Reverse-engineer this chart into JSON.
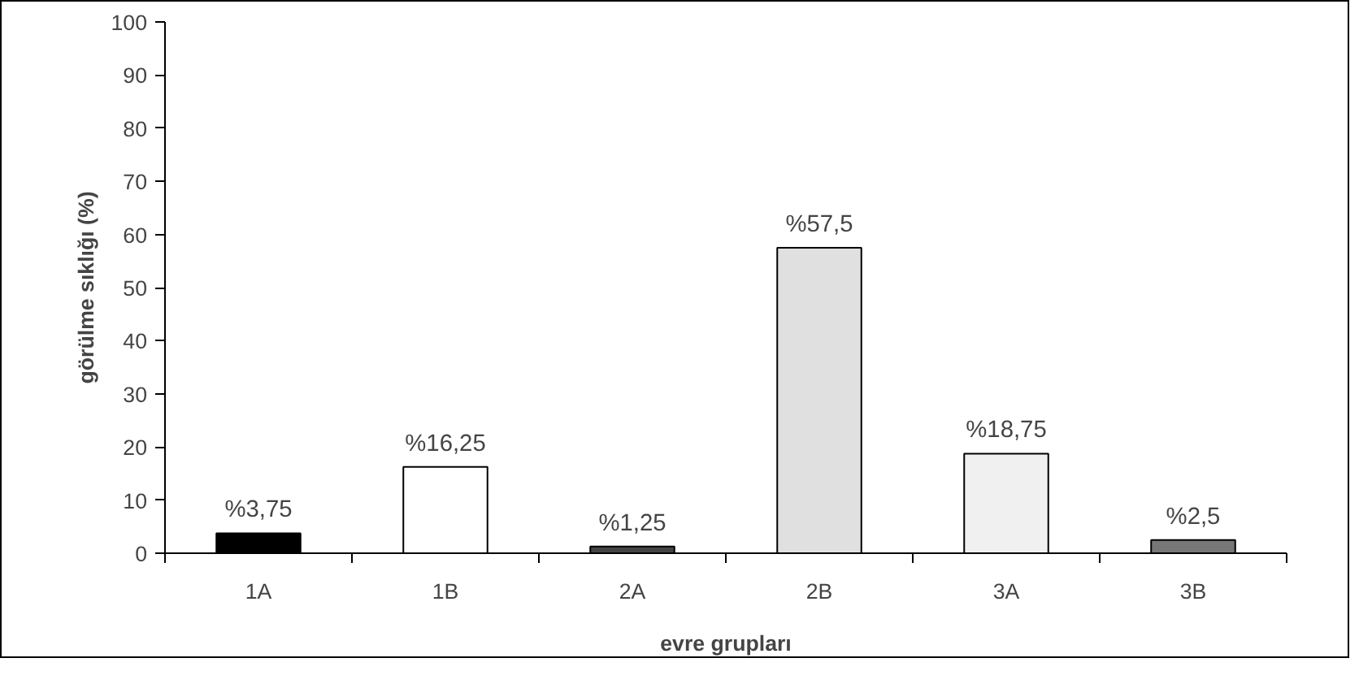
{
  "chart_data": {
    "type": "bar",
    "xlabel": "evre grupları",
    "ylabel": "görülme sıklığı (%)",
    "categories": [
      "1A",
      "1B",
      "2A",
      "2B",
      "3A",
      "3B"
    ],
    "values": [
      3.75,
      16.25,
      1.25,
      57.5,
      18.75,
      2.5
    ],
    "colors": [
      "#000000",
      "#ffffff",
      "#444444",
      "#e0e0e0",
      "#f0f0f0",
      "#777777"
    ],
    "value_labels": [
      "%3,75",
      "%16,25",
      "%1,25",
      "%57,5",
      "%18,75",
      "%2,5"
    ],
    "ylim": [
      0,
      100
    ],
    "yticks": [
      0,
      10,
      20,
      30,
      40,
      50,
      60,
      70,
      80,
      90,
      100
    ],
    "grid": false
  }
}
